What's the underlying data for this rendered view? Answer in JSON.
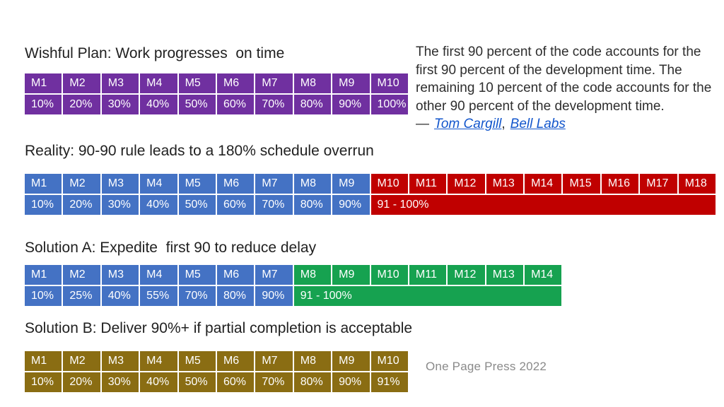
{
  "quote": {
    "text": "The first 90 percent of the code accounts for the first 90 percent of the development time. The remaining 10 percent of the code accounts for the other 90 percent of the development time.",
    "dash": "—",
    "links": [
      {
        "label": "Tom Cargill"
      },
      {
        "label": "Bell Labs"
      }
    ],
    "separator": ",",
    "link_color": "#1155CC"
  },
  "footer": {
    "credit": "One Page Press 2022"
  },
  "colors": {
    "wishful_purple": "#7030A0",
    "on_time_blue": "#4472C4",
    "overrun_red": "#C00000",
    "expedite_green": "#16A250",
    "partial_gold": "#8A6D13",
    "link_blue": "#1155CC",
    "title_text": "#212121",
    "credit_gray": "#8a8a8a"
  },
  "tables": [
    {
      "title": "Wishful Plan: Work progresses  on time",
      "columns": 10,
      "header": [
        {
          "label": "M1",
          "color": "#7030A0",
          "span": 1
        },
        {
          "label": "M2",
          "color": "#7030A0",
          "span": 1
        },
        {
          "label": "M3",
          "color": "#7030A0",
          "span": 1
        },
        {
          "label": "M4",
          "color": "#7030A0",
          "span": 1
        },
        {
          "label": "M5",
          "color": "#7030A0",
          "span": 1
        },
        {
          "label": "M6",
          "color": "#7030A0",
          "span": 1
        },
        {
          "label": "M7",
          "color": "#7030A0",
          "span": 1
        },
        {
          "label": "M8",
          "color": "#7030A0",
          "span": 1
        },
        {
          "label": "M9",
          "color": "#7030A0",
          "span": 1
        },
        {
          "label": "M10",
          "color": "#7030A0",
          "span": 1
        }
      ],
      "values": [
        {
          "label": "10%",
          "color": "#7030A0",
          "span": 1
        },
        {
          "label": "20%",
          "color": "#7030A0",
          "span": 1
        },
        {
          "label": "30%",
          "color": "#7030A0",
          "span": 1
        },
        {
          "label": "40%",
          "color": "#7030A0",
          "span": 1
        },
        {
          "label": "50%",
          "color": "#7030A0",
          "span": 1
        },
        {
          "label": "60%",
          "color": "#7030A0",
          "span": 1
        },
        {
          "label": "70%",
          "color": "#7030A0",
          "span": 1
        },
        {
          "label": "80%",
          "color": "#7030A0",
          "span": 1
        },
        {
          "label": "90%",
          "color": "#7030A0",
          "span": 1
        },
        {
          "label": "100%",
          "color": "#7030A0",
          "span": 1
        }
      ]
    },
    {
      "title": "Reality: 90-90 rule leads to a 180% schedule overrun",
      "columns": 18,
      "header": [
        {
          "label": "M1",
          "color": "#4472C4",
          "span": 1
        },
        {
          "label": "M2",
          "color": "#4472C4",
          "span": 1
        },
        {
          "label": "M3",
          "color": "#4472C4",
          "span": 1
        },
        {
          "label": "M4",
          "color": "#4472C4",
          "span": 1
        },
        {
          "label": "M5",
          "color": "#4472C4",
          "span": 1
        },
        {
          "label": "M6",
          "color": "#4472C4",
          "span": 1
        },
        {
          "label": "M7",
          "color": "#4472C4",
          "span": 1
        },
        {
          "label": "M8",
          "color": "#4472C4",
          "span": 1
        },
        {
          "label": "M9",
          "color": "#4472C4",
          "span": 1
        },
        {
          "label": "M10",
          "color": "#C00000",
          "span": 1
        },
        {
          "label": "M11",
          "color": "#C00000",
          "span": 1
        },
        {
          "label": "M12",
          "color": "#C00000",
          "span": 1
        },
        {
          "label": "M13",
          "color": "#C00000",
          "span": 1
        },
        {
          "label": "M14",
          "color": "#C00000",
          "span": 1
        },
        {
          "label": "M15",
          "color": "#C00000",
          "span": 1
        },
        {
          "label": "M16",
          "color": "#C00000",
          "span": 1
        },
        {
          "label": "M17",
          "color": "#C00000",
          "span": 1
        },
        {
          "label": "M18",
          "color": "#C00000",
          "span": 1
        }
      ],
      "values": [
        {
          "label": "10%",
          "color": "#4472C4",
          "span": 1
        },
        {
          "label": "20%",
          "color": "#4472C4",
          "span": 1
        },
        {
          "label": "30%",
          "color": "#4472C4",
          "span": 1
        },
        {
          "label": "40%",
          "color": "#4472C4",
          "span": 1
        },
        {
          "label": "50%",
          "color": "#4472C4",
          "span": 1
        },
        {
          "label": "60%",
          "color": "#4472C4",
          "span": 1
        },
        {
          "label": "70%",
          "color": "#4472C4",
          "span": 1
        },
        {
          "label": "80%",
          "color": "#4472C4",
          "span": 1
        },
        {
          "label": "90%",
          "color": "#4472C4",
          "span": 1
        },
        {
          "label": "91 - 100%",
          "color": "#C00000",
          "span": 9
        }
      ]
    },
    {
      "title": "Solution A: Expedite  first 90 to reduce delay",
      "columns": 14,
      "header": [
        {
          "label": "M1",
          "color": "#4472C4",
          "span": 1
        },
        {
          "label": "M2",
          "color": "#4472C4",
          "span": 1
        },
        {
          "label": "M3",
          "color": "#4472C4",
          "span": 1
        },
        {
          "label": "M4",
          "color": "#4472C4",
          "span": 1
        },
        {
          "label": "M5",
          "color": "#4472C4",
          "span": 1
        },
        {
          "label": "M6",
          "color": "#4472C4",
          "span": 1
        },
        {
          "label": "M7",
          "color": "#4472C4",
          "span": 1
        },
        {
          "label": "M8",
          "color": "#16A250",
          "span": 1
        },
        {
          "label": "M9",
          "color": "#16A250",
          "span": 1
        },
        {
          "label": "M10",
          "color": "#16A250",
          "span": 1
        },
        {
          "label": "M11",
          "color": "#16A250",
          "span": 1
        },
        {
          "label": "M12",
          "color": "#16A250",
          "span": 1
        },
        {
          "label": "M13",
          "color": "#16A250",
          "span": 1
        },
        {
          "label": "M14",
          "color": "#16A250",
          "span": 1
        }
      ],
      "values": [
        {
          "label": "10%",
          "color": "#4472C4",
          "span": 1
        },
        {
          "label": "25%",
          "color": "#4472C4",
          "span": 1
        },
        {
          "label": "40%",
          "color": "#4472C4",
          "span": 1
        },
        {
          "label": "55%",
          "color": "#4472C4",
          "span": 1
        },
        {
          "label": "70%",
          "color": "#4472C4",
          "span": 1
        },
        {
          "label": "80%",
          "color": "#4472C4",
          "span": 1
        },
        {
          "label": "90%",
          "color": "#4472C4",
          "span": 1
        },
        {
          "label": "91 - 100%",
          "color": "#16A250",
          "span": 7
        }
      ]
    },
    {
      "title": "Solution B: Deliver 90%+ if partial completion is acceptable",
      "columns": 10,
      "header": [
        {
          "label": "M1",
          "color": "#8A6D13",
          "span": 1
        },
        {
          "label": "M2",
          "color": "#8A6D13",
          "span": 1
        },
        {
          "label": "M3",
          "color": "#8A6D13",
          "span": 1
        },
        {
          "label": "M4",
          "color": "#8A6D13",
          "span": 1
        },
        {
          "label": "M5",
          "color": "#8A6D13",
          "span": 1
        },
        {
          "label": "M6",
          "color": "#8A6D13",
          "span": 1
        },
        {
          "label": "M7",
          "color": "#8A6D13",
          "span": 1
        },
        {
          "label": "M8",
          "color": "#8A6D13",
          "span": 1
        },
        {
          "label": "M9",
          "color": "#8A6D13",
          "span": 1
        },
        {
          "label": "M10",
          "color": "#8A6D13",
          "span": 1
        }
      ],
      "values": [
        {
          "label": "10%",
          "color": "#8A6D13",
          "span": 1
        },
        {
          "label": "20%",
          "color": "#8A6D13",
          "span": 1
        },
        {
          "label": "30%",
          "color": "#8A6D13",
          "span": 1
        },
        {
          "label": "40%",
          "color": "#8A6D13",
          "span": 1
        },
        {
          "label": "50%",
          "color": "#8A6D13",
          "span": 1
        },
        {
          "label": "60%",
          "color": "#8A6D13",
          "span": 1
        },
        {
          "label": "70%",
          "color": "#8A6D13",
          "span": 1
        },
        {
          "label": "80%",
          "color": "#8A6D13",
          "span": 1
        },
        {
          "label": "90%",
          "color": "#8A6D13",
          "span": 1
        },
        {
          "label": "91%",
          "color": "#8A6D13",
          "span": 1
        }
      ]
    }
  ]
}
